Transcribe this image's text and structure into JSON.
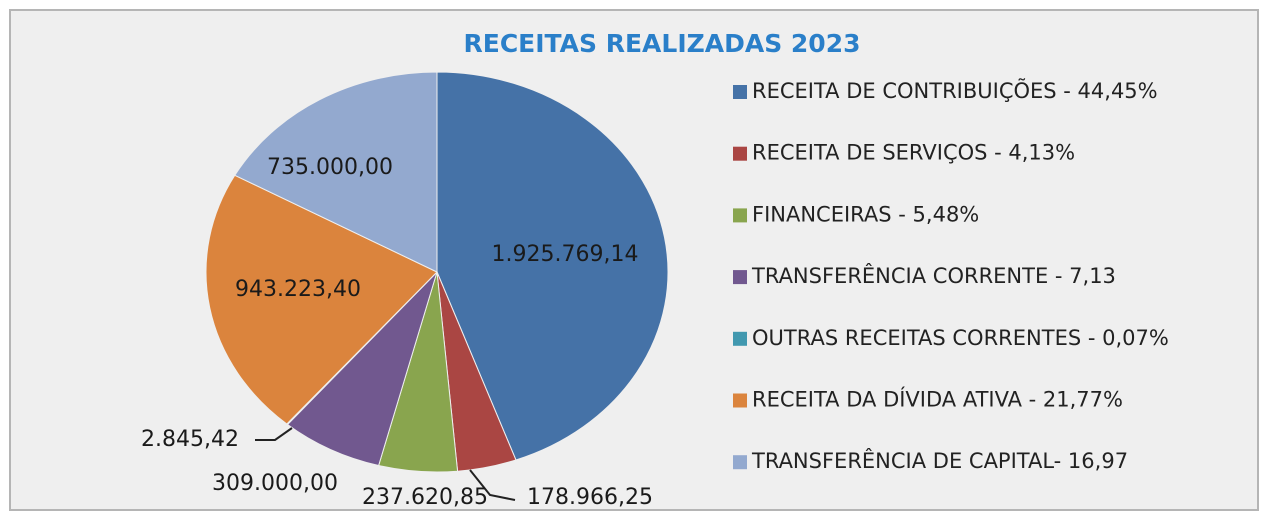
{
  "chart_data": {
    "type": "pie",
    "title": "RECEITAS REALIZADAS 2023",
    "categories": [
      "RECEITA DE CONTRIBUIÇÕES - 44,45%",
      "RECEITA DE SERVIÇOS - 4,13%",
      "FINANCEIRAS - 5,48%",
      "TRANSFERÊNCIA CORRENTE - 7,13",
      "OUTRAS RECEITAS CORRENTES - 0,07%",
      "RECEITA DA DÍVIDA ATIVA - 21,77%",
      "TRANSFERÊNCIA DE CAPITAL- 16,97"
    ],
    "values": [
      1925769.14,
      178966.25,
      237620.85,
      309000.0,
      2845.42,
      943223.4,
      735000.0
    ],
    "value_labels": [
      "1.925.769,14",
      "178.966,25",
      "237.620,85",
      "309.000,00",
      "2.845,42",
      "943.223,40",
      "735.000,00"
    ],
    "colors": [
      "#4572a7",
      "#aa4643",
      "#89a54e",
      "#71588f",
      "#4198af",
      "#db843d",
      "#93a9cf"
    ],
    "legend": "right"
  }
}
